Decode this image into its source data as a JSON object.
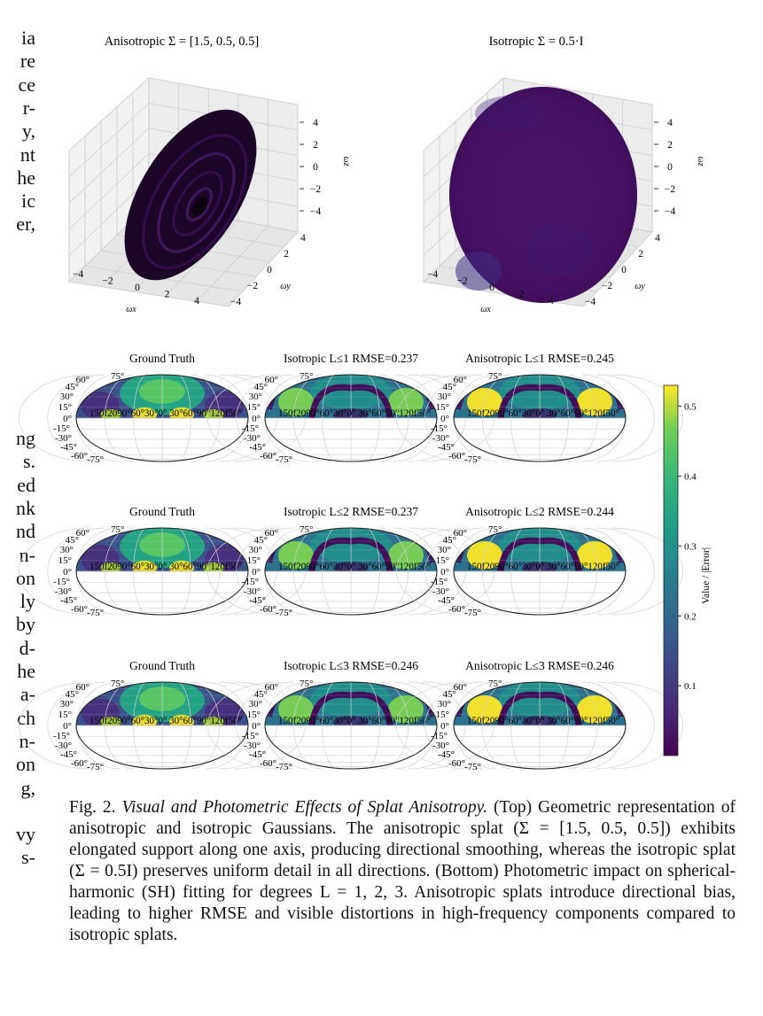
{
  "left_fragments_top": [
    "ia",
    "re",
    "ce",
    "r-",
    "y,",
    "nt",
    "he",
    "ic",
    "er,"
  ],
  "left_fragments_bottom": [
    "ng",
    "s.",
    "ed",
    "nk",
    "nd",
    "n-",
    "on",
    "ly",
    "by",
    "d-",
    "he",
    "a-",
    "ch",
    "n-",
    "on",
    "g,",
    "",
    "vy",
    "s-"
  ],
  "top_plots": [
    {
      "title": "Anisotropic Σ = [1.5, 0.5, 0.5]",
      "kind": "anisotropic",
      "z_ticks": [
        "4",
        "2",
        "0",
        "−2",
        "−4"
      ],
      "y_ticks": [
        "4",
        "2",
        "0",
        "−2",
        "−4"
      ],
      "x_ticks": [
        "−4",
        "−2",
        "0",
        "2",
        "4"
      ],
      "xlabel": "ωx",
      "ylabel": "ωy",
      "zlabel": "ωz"
    },
    {
      "title": "Isotropic Σ = 0.5·I",
      "kind": "isotropic",
      "z_ticks": [
        "4",
        "2",
        "0",
        "−2",
        "−4"
      ],
      "y_ticks": [
        "4",
        "2",
        "0",
        "−2",
        "−4"
      ],
      "x_ticks": [
        "−4",
        "−2",
        "0",
        "2",
        "4"
      ],
      "xlabel": "ωx",
      "ylabel": "ωy",
      "zlabel": "ωz"
    }
  ],
  "mollweide_labels": {
    "lon_text": "150f2090°60°30°0° 30°60°90°120f50°",
    "lat_left": [
      "75°",
      "60°",
      "45°",
      "30°",
      "15°",
      "0°",
      "-15°",
      "-30°",
      "-45°",
      "-60°",
      "-75°"
    ]
  },
  "grid": [
    [
      {
        "title": "Ground Truth",
        "variant": "gt"
      },
      {
        "title": "Isotropic  L≤1  RMSE=0.237",
        "variant": "iso"
      },
      {
        "title": "Anisotropic  L≤1  RMSE=0.245",
        "variant": "aniso"
      }
    ],
    [
      {
        "title": "Ground Truth",
        "variant": "gt"
      },
      {
        "title": "Isotropic  L≤2  RMSE=0.237",
        "variant": "iso"
      },
      {
        "title": "Anisotropic  L≤2  RMSE=0.244",
        "variant": "aniso"
      }
    ],
    [
      {
        "title": "Ground Truth",
        "variant": "gt"
      },
      {
        "title": "Isotropic  L≤3  RMSE=0.246",
        "variant": "iso"
      },
      {
        "title": "Anisotropic  L≤3  RMSE=0.246",
        "variant": "aniso"
      }
    ]
  ],
  "colorbar": {
    "label": "Value / |Error|",
    "ticks": [
      "0.5",
      "0.4",
      "0.3",
      "0.2",
      "0.1"
    ],
    "tick_values": [
      0.5,
      0.4,
      0.3,
      0.2,
      0.1
    ],
    "min": 0.0,
    "max": 0.53
  },
  "caption": {
    "fig_label": "Fig. 2.",
    "italic_title": "Visual and Photometric Effects of Splat Anisotropy.",
    "body": " (Top) Geometric representation of anisotropic and isotropic Gaussians. The anisotropic splat (Σ = [1.5, 0.5, 0.5]) exhibits elongated support along one axis, producing directional smoothing, whereas the isotropic splat (Σ = 0.5I) preserves uniform detail in all directions. (Bottom) Photometric impact on spherical-harmonic (SH) fitting for degrees L = 1, 2, 3. Anisotropic splats introduce directional bias, leading to higher RMSE and visible distortions in high-frequency components compared to isotropic splats."
  },
  "colors": {
    "viridis_dark": "#440154",
    "viridis_mid": "#21918c",
    "viridis_light": "#5ec962",
    "viridis_yellow": "#fde725",
    "purple_sphere": "#471063"
  }
}
